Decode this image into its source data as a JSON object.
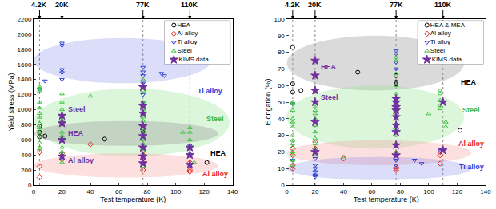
{
  "chart_data": [
    {
      "type": "scatter",
      "x_label": "Test temperature (K)",
      "y_label": "Yield stress (MPa)",
      "xlim": [
        0,
        140
      ],
      "xticks": [
        0,
        20,
        40,
        60,
        80,
        100,
        120,
        140
      ],
      "ylim": [
        0,
        2200
      ],
      "yticks": [
        0,
        200,
        400,
        600,
        800,
        1000,
        1200,
        1400,
        1600,
        1800,
        2000,
        2200
      ],
      "grid": false,
      "legend": "upper right",
      "reference_temperatures": [
        {
          "x": 4.2,
          "label": "4.2K"
        },
        {
          "x": 20,
          "label": "20K"
        },
        {
          "x": 77,
          "label": "77K"
        },
        {
          "x": 110,
          "label": "110K"
        }
      ],
      "regions": [
        {
          "color": "rgba(110,120,230,0.25)",
          "x": [
            0,
            125
          ],
          "y": [
            1350,
            1950
          ]
        },
        {
          "color": "rgba(140,225,140,0.30)",
          "x": [
            0,
            138
          ],
          "y": [
            380,
            1280
          ]
        },
        {
          "color": "rgba(150,150,150,0.35)",
          "x": [
            0,
            130
          ],
          "y": [
            520,
            850
          ]
        },
        {
          "color": "rgba(245,150,150,0.30)",
          "x": [
            0,
            130
          ],
          "y": [
            100,
            420
          ]
        }
      ],
      "annotations": [
        {
          "text": "Ti alloy",
          "x": 124,
          "y": 1250,
          "color": "#2a3bd6"
        },
        {
          "text": "Steel",
          "x": 23,
          "y": 1010,
          "color": "#7030a0"
        },
        {
          "text": "Steel",
          "x": 128,
          "y": 880,
          "color": "#3cb43c"
        },
        {
          "text": "HEA",
          "x": 23,
          "y": 690,
          "color": "#7030a0"
        },
        {
          "text": "HEA",
          "x": 130,
          "y": 420,
          "color": "#000000"
        },
        {
          "text": "Al alloy",
          "x": 23,
          "y": 330,
          "color": "#7030a0"
        },
        {
          "text": "Al alloy",
          "x": 128,
          "y": 150,
          "color": "#e8251b"
        }
      ],
      "series": [
        {
          "name": "HEA",
          "color": "#000000",
          "marker": "circle-open",
          "x": [
            4.2,
            4.2,
            4.2,
            8,
            50,
            77,
            77,
            122
          ],
          "values": [
            640,
            700,
            780,
            650,
            610,
            750,
            700,
            300
          ]
        },
        {
          "name": "Al alloy",
          "color": "#e8251b",
          "marker": "diamond-open",
          "x": [
            4.2,
            4.2,
            4.2,
            20,
            20,
            40,
            77,
            77,
            77,
            77,
            77,
            110,
            110,
            110
          ],
          "values": [
            100,
            250,
            440,
            420,
            340,
            540,
            450,
            400,
            350,
            300,
            200,
            300,
            200,
            180
          ]
        },
        {
          "name": "Ti alloy",
          "color": "#2a3bd6",
          "marker": "triangle-down-open",
          "x": [
            4.2,
            8,
            20,
            20,
            20,
            20,
            20,
            77,
            77,
            77,
            77,
            77,
            77,
            77,
            90,
            92,
            110
          ],
          "values": [
            1270,
            1380,
            1880,
            1850,
            1530,
            1490,
            1400,
            1560,
            1500,
            1450,
            1350,
            1300,
            1200,
            1100,
            1480,
            1450,
            530
          ]
        },
        {
          "name": "Steel",
          "color": "#3cc43c",
          "marker": "triangle-up-open",
          "x": [
            4.2,
            4.2,
            4.2,
            4.2,
            4.2,
            4.2,
            4.2,
            4.2,
            4.2,
            4.2,
            4.2,
            4.2,
            4.2,
            4.2,
            20,
            20,
            20,
            20,
            20,
            20,
            20,
            20,
            20,
            20,
            20,
            20,
            20,
            20,
            40,
            77,
            77,
            77,
            77,
            77,
            77,
            77,
            77,
            77,
            77,
            77,
            77,
            77,
            77,
            77,
            77,
            77,
            77,
            77,
            77,
            105,
            110,
            110,
            110,
            110,
            110,
            113
          ],
          "values": [
            1300,
            1280,
            1250,
            1100,
            1020,
            950,
            900,
            820,
            760,
            700,
            640,
            560,
            500,
            480,
            1210,
            1100,
            1000,
            900,
            860,
            800,
            700,
            650,
            600,
            500,
            440,
            400,
            350,
            300,
            1180,
            1400,
            1300,
            1250,
            1100,
            1050,
            1000,
            950,
            900,
            850,
            800,
            750,
            700,
            600,
            550,
            500,
            450,
            400,
            350,
            300,
            250,
            700,
            760,
            700,
            600,
            480,
            420,
            300
          ]
        },
        {
          "name": "KIMS data",
          "color": "#7030a0",
          "marker": "star",
          "x": [
            20,
            20,
            20,
            20,
            77,
            77,
            77,
            77,
            77,
            77,
            77,
            77,
            110,
            110,
            110
          ],
          "values": [
            920,
            820,
            600,
            380,
            1300,
            1050,
            950,
            780,
            650,
            500,
            380,
            290,
            500,
            400,
            270
          ]
        }
      ]
    },
    {
      "type": "scatter",
      "x_label": "Test temperature (K)",
      "y_label": "Elongation (%)",
      "xlim": [
        0,
        140
      ],
      "xticks": [
        0,
        20,
        40,
        60,
        80,
        100,
        120,
        140
      ],
      "ylim": [
        0,
        100
      ],
      "yticks": [
        0,
        10,
        20,
        30,
        40,
        50,
        60,
        70,
        80,
        90,
        100
      ],
      "grid": false,
      "legend": "upper right",
      "reference_temperatures": [
        {
          "x": 4.2,
          "label": "4.2K"
        },
        {
          "x": 20,
          "label": "20K"
        },
        {
          "x": 77,
          "label": "77K"
        },
        {
          "x": 110,
          "label": "110K"
        }
      ],
      "regions": [
        {
          "color": "rgba(150,150,150,0.35)",
          "x": [
            0,
            125
          ],
          "y": [
            57,
            90
          ]
        },
        {
          "color": "rgba(140,225,140,0.30)",
          "x": [
            0,
            125
          ],
          "y": [
            22,
            60
          ]
        },
        {
          "color": "rgba(245,150,150,0.30)",
          "x": [
            0,
            130
          ],
          "y": [
            12,
            27
          ]
        },
        {
          "color": "rgba(110,120,230,0.25)",
          "x": [
            0,
            130
          ],
          "y": [
            3,
            17
          ]
        }
      ],
      "annotations": [
        {
          "text": "HEA",
          "x": 23,
          "y": 71,
          "color": "#7030a0"
        },
        {
          "text": "HEA",
          "x": 128,
          "y": 62,
          "color": "#000000"
        },
        {
          "text": "Steel",
          "x": 23,
          "y": 53,
          "color": "#7030a0"
        },
        {
          "text": "Steel",
          "x": 130,
          "y": 45,
          "color": "#3cb43c"
        },
        {
          "text": "Al alloy",
          "x": 130,
          "y": 25,
          "color": "#e8251b"
        },
        {
          "text": "Ti alloy",
          "x": 130,
          "y": 11,
          "color": "#2a3bd6"
        }
      ],
      "series": [
        {
          "name": "HEA & MEA",
          "color": "#000000",
          "marker": "circle-open",
          "x": [
            4.2,
            4.2,
            4.2,
            10,
            50,
            77,
            77,
            77,
            122
          ],
          "values": [
            83,
            61,
            56,
            57,
            68,
            66,
            62,
            61,
            33
          ]
        },
        {
          "name": "Al alloy",
          "color": "#e8251b",
          "marker": "diamond-open",
          "x": [
            4.2,
            4.2,
            4.2,
            4.2,
            20,
            20,
            40,
            77,
            77,
            77,
            108,
            108,
            108
          ],
          "values": [
            22,
            18,
            12,
            10,
            26,
            22,
            16,
            11,
            10,
            9,
            20,
            18,
            13
          ]
        },
        {
          "name": "Ti alloy",
          "color": "#2a3bd6",
          "marker": "triangle-down-open",
          "x": [
            4.2,
            4.2,
            20,
            20,
            20,
            20,
            20,
            20,
            77,
            77,
            77,
            77,
            77,
            77,
            90,
            95,
            108
          ],
          "values": [
            49,
            15,
            16,
            12,
            10,
            8,
            6,
            5,
            81,
            79,
            74,
            70,
            15,
            12,
            15,
            13,
            21
          ]
        },
        {
          "name": "Steel",
          "color": "#3cc43c",
          "marker": "triangle-up-open",
          "x": [
            4.2,
            4.2,
            4.2,
            4.2,
            4.2,
            4.2,
            4.2,
            4.2,
            4.2,
            4.2,
            4.2,
            4.2,
            4.2,
            4.2,
            20,
            20,
            20,
            20,
            20,
            20,
            20,
            20,
            20,
            20,
            40,
            77,
            77,
            77,
            77,
            77,
            77,
            77,
            77,
            77,
            77,
            77,
            77,
            77,
            77,
            100,
            108,
            108,
            108,
            108,
            108,
            112,
            112
          ],
          "values": [
            50,
            49,
            45,
            40,
            38,
            35,
            30,
            27,
            25,
            23,
            20,
            18,
            15,
            12,
            47,
            45,
            43,
            40,
            36,
            32,
            28,
            25,
            22,
            18,
            17,
            77,
            75,
            67,
            60,
            55,
            50,
            45,
            43,
            40,
            37,
            34,
            30,
            25,
            20,
            43,
            57,
            55,
            51,
            48,
            46,
            38,
            35
          ]
        },
        {
          "name": "KIMS data",
          "color": "#7030a0",
          "marker": "star",
          "x": [
            20,
            20,
            20,
            20,
            20,
            20,
            77,
            77,
            77,
            77,
            77,
            77,
            77,
            77,
            77,
            110,
            110
          ],
          "values": [
            75,
            66,
            57,
            50,
            38,
            20,
            52,
            50,
            47,
            45,
            41,
            36,
            32,
            24,
            18,
            50,
            21
          ]
        }
      ]
    }
  ]
}
